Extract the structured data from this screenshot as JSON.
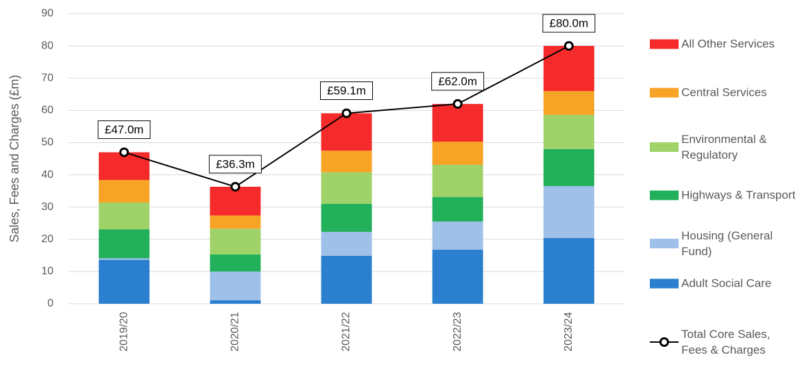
{
  "chart_data": {
    "type": "bar",
    "stacked": true,
    "y_label": "Sales, Fees and Charges (£m)",
    "categories": [
      "2019/20",
      "2020/21",
      "2021/22",
      "2022/23",
      "2023/24"
    ],
    "ylim": [
      0,
      90
    ],
    "yticks": [
      0,
      10,
      20,
      30,
      40,
      50,
      60,
      70,
      80,
      90
    ],
    "grid": true,
    "series": [
      {
        "name": "Adult Social Care",
        "color": "#2a7fcf",
        "values": [
          13.6,
          1.1,
          14.9,
          16.8,
          20.4
        ]
      },
      {
        "name": "Housing (General Fund)",
        "color": "#9fc0e8",
        "values": [
          0.5,
          8.9,
          7.4,
          8.7,
          16.1
        ]
      },
      {
        "name": "Highways & Transport",
        "color": "#22b05a",
        "values": [
          9.0,
          5.3,
          8.7,
          7.6,
          11.5
        ]
      },
      {
        "name": "Environmental & Regulatory",
        "color": "#9fd36a",
        "values": [
          8.3,
          8.0,
          9.8,
          10.0,
          10.6
        ]
      },
      {
        "name": "Central Services",
        "color": "#f7a325",
        "values": [
          7.0,
          4.1,
          6.7,
          7.2,
          7.4
        ]
      },
      {
        "name": "All Other Services",
        "color": "#f52a2a",
        "values": [
          8.6,
          8.9,
          11.6,
          11.7,
          14.0
        ]
      },
      {
        "name": "Total Core Sales, Fees & Charges",
        "type": "line",
        "color": "#000000",
        "values": [
          47.0,
          36.3,
          59.1,
          62.0,
          80.0
        ],
        "value_labels": [
          "£47.0m",
          "£36.3m",
          "£59.1m",
          "£62.0m",
          "£80.0m"
        ]
      }
    ],
    "legend": "right"
  }
}
